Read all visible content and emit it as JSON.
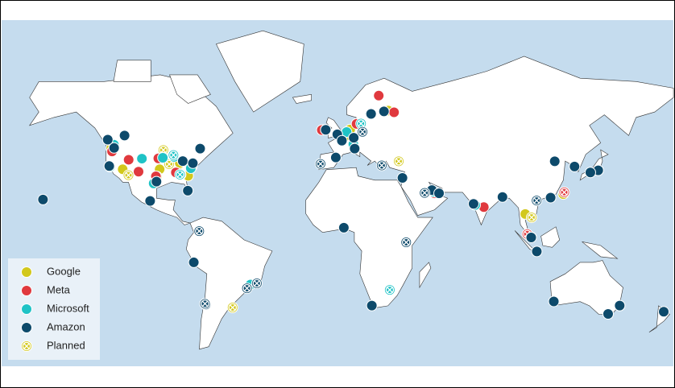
{
  "chart_data": {
    "type": "map",
    "series": [
      {
        "name": "Google",
        "color": "#d2c81c",
        "locations": [
          [
            -95.9,
            41.2
          ],
          [
            -121.2,
            45.6
          ],
          [
            -95.3,
            36.2
          ],
          [
            -80.0,
            33.1
          ],
          [
            -85.0,
            34.5
          ],
          [
            -115.1,
            36.2
          ],
          [
            -96.8,
            32.8
          ],
          [
            -84.5,
            39.1
          ],
          [
            6.8,
            53.4
          ],
          [
            3.8,
            50.5
          ],
          [
            27.2,
            60.5
          ],
          [
            -6.3,
            53.3
          ],
          [
            121.0,
            24.1
          ],
          [
            100.6,
            13.8
          ]
        ],
        "planned": [
          [
            -56.2,
            -34.8
          ],
          [
            -90.2,
            38.6
          ],
          [
            -97.5,
            31.1
          ],
          [
            -93.3,
            44.9
          ],
          [
            -112.0,
            33.4
          ],
          [
            8.7,
            50.1
          ],
          [
            32.8,
            39.9
          ],
          [
            104.0,
            12.0
          ]
        ]
      },
      {
        "name": "Meta",
        "color": "#e0393e",
        "locations": [
          [
            -120.8,
            44.3
          ],
          [
            -111.9,
            40.6
          ],
          [
            -106.6,
            35.1
          ],
          [
            -97.3,
            32.9
          ],
          [
            -93.6,
            41.6
          ],
          [
            -86.6,
            34.7
          ],
          [
            -84.0,
            33.7
          ],
          [
            -78.0,
            37.5
          ],
          [
            -82.8,
            40.1
          ],
          [
            -96.0,
            41.2
          ],
          [
            22.1,
            65.6
          ],
          [
            10.2,
            55.6
          ],
          [
            -8.4,
            53.2
          ],
          [
            103.8,
            1.4
          ],
          [
            78.4,
            17.4
          ],
          [
            49.4,
            25.5
          ],
          [
            30.3,
            59.9
          ]
        ],
        "planned": [
          [
            101.7,
            3.1
          ],
          [
            121.5,
            25.0
          ],
          [
            52.0,
            24.5
          ]
        ]
      },
      {
        "name": "Microsoft",
        "color": "#1fc3c6",
        "locations": [
          [
            -119.8,
            47.2
          ],
          [
            -121.9,
            37.4
          ],
          [
            -104.8,
            41.1
          ],
          [
            -98.5,
            29.4
          ],
          [
            -93.6,
            41.5
          ],
          [
            -87.6,
            41.9
          ],
          [
            -78.6,
            36.7
          ],
          [
            -6.3,
            53.3
          ],
          [
            4.9,
            52.4
          ],
          [
            17.6,
            59.3
          ],
          [
            8.5,
            47.4
          ],
          [
            -0.1,
            51.5
          ],
          [
            73.8,
            18.5
          ],
          [
            139.7,
            35.7
          ],
          [
            127.0,
            37.5
          ],
          [
            114.2,
            22.3
          ],
          [
            151.2,
            -33.9
          ],
          [
            145.0,
            -37.8
          ],
          [
            -46.6,
            -23.5
          ],
          [
            51.5,
            25.3
          ],
          [
            2.3,
            48.9
          ]
        ],
        "planned": [
          [
            -87.9,
            42.7
          ],
          [
            -84.4,
            33.7
          ],
          [
            28.0,
            -26.2
          ],
          [
            12.6,
            55.7
          ]
        ]
      },
      {
        "name": "Amazon",
        "color": "#0d4a6b",
        "locations": [
          [
            -119.7,
            45.8
          ],
          [
            -122.3,
            37.7
          ],
          [
            -82.9,
            40.0
          ],
          [
            -77.5,
            39.0
          ],
          [
            -73.6,
            45.5
          ],
          [
            -114.1,
            51.0
          ],
          [
            -157.8,
            21.3
          ],
          [
            -100.4,
            20.6
          ],
          [
            -70.6,
            -33.4
          ],
          [
            -77.0,
            -12.0
          ],
          [
            3.4,
            6.5
          ],
          [
            18.4,
            -33.9
          ],
          [
            -6.3,
            53.3
          ],
          [
            -0.1,
            51.5
          ],
          [
            2.35,
            48.9
          ],
          [
            8.7,
            50.1
          ],
          [
            18.0,
            59.3
          ],
          [
            9.2,
            45.5
          ],
          [
            -0.9,
            41.6
          ],
          [
            50.6,
            26.1
          ],
          [
            54.4,
            24.5
          ],
          [
            34.8,
            32.1
          ],
          [
            72.9,
            19.1
          ],
          [
            88.4,
            22.6
          ],
          [
            103.8,
            1.3
          ],
          [
            106.8,
            -6.2
          ],
          [
            139.7,
            35.7
          ],
          [
            135.5,
            34.7
          ],
          [
            127.0,
            37.5
          ],
          [
            114.2,
            22.3
          ],
          [
            116.4,
            39.9
          ],
          [
            151.2,
            -33.9
          ],
          [
            145.0,
            -37.8
          ],
          [
            174.8,
            -36.8
          ],
          [
            115.9,
            -31.9
          ],
          [
            -123.1,
            49.3
          ],
          [
            -80.2,
            25.8
          ],
          [
            -97.0,
            30.3
          ],
          [
            24.9,
            60.2
          ]
        ],
        "planned": [
          [
            -74.1,
            4.7
          ],
          [
            36.8,
            -1.3
          ],
          [
            -43.2,
            -22.9
          ],
          [
            -48.5,
            -25.4
          ],
          [
            23.7,
            38.0
          ],
          [
            46.7,
            24.7
          ],
          [
            106.7,
            20.8
          ],
          [
            -9.1,
            38.7
          ],
          [
            13.4,
            52.5
          ],
          [
            -71.0,
            -33.0
          ]
        ]
      }
    ],
    "legend": {
      "planned_name": "Planned",
      "planned_color": "#d2c81c"
    }
  }
}
